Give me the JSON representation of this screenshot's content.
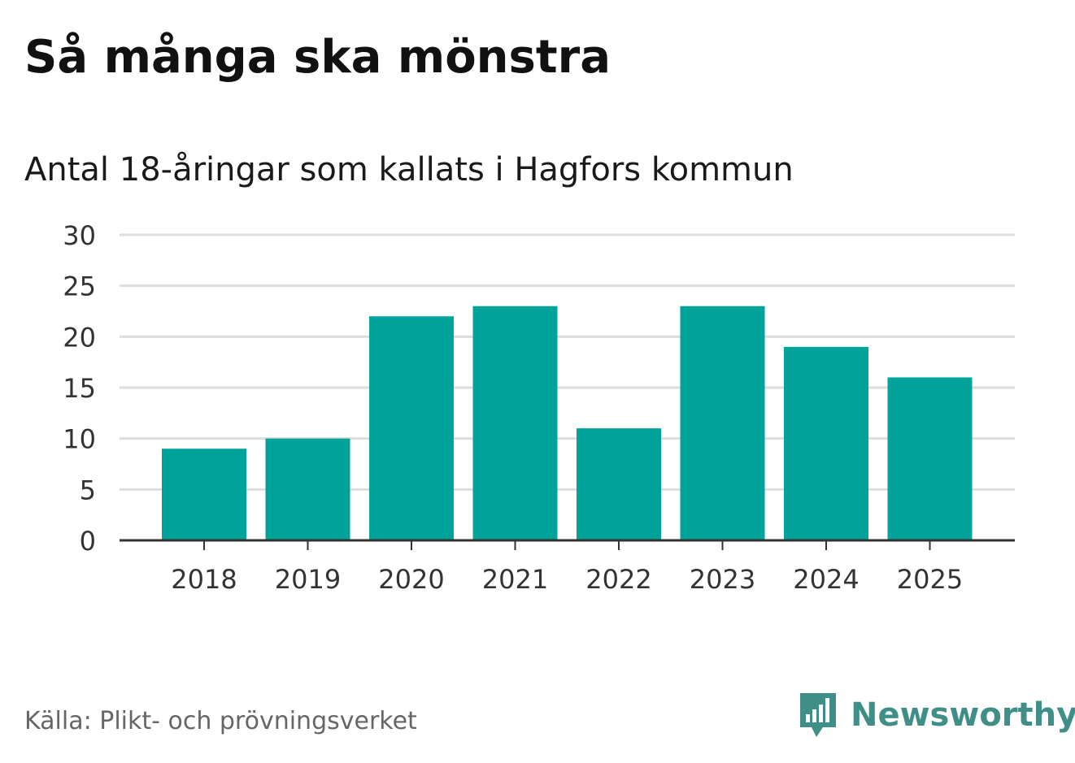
{
  "header": {
    "title": "Så många ska mönstra",
    "subtitle": "Antal 18-åringar som kallats i Hagfors kommun"
  },
  "footer": {
    "source": "Källa: Plikt- och prövningsverket",
    "brand": "Newsworthy",
    "brand_icon": "bar-chart-speech-bubble-icon"
  },
  "colors": {
    "bar": "#00a39a",
    "grid": "#dddddd",
    "axis": "#333333",
    "brand": "#3f8f88"
  },
  "chart_data": {
    "type": "bar",
    "title": "Antal 18-åringar som kallats i Hagfors kommun",
    "categories": [
      "2018",
      "2019",
      "2020",
      "2021",
      "2022",
      "2023",
      "2024",
      "2025"
    ],
    "values": [
      9,
      10,
      22,
      23,
      11,
      23,
      19,
      16
    ],
    "xlabel": "",
    "ylabel": "",
    "ylim": [
      0,
      30
    ],
    "yticks": [
      "0",
      "5",
      "10",
      "15",
      "20",
      "25",
      "30"
    ],
    "grid": true,
    "legend": "none"
  }
}
